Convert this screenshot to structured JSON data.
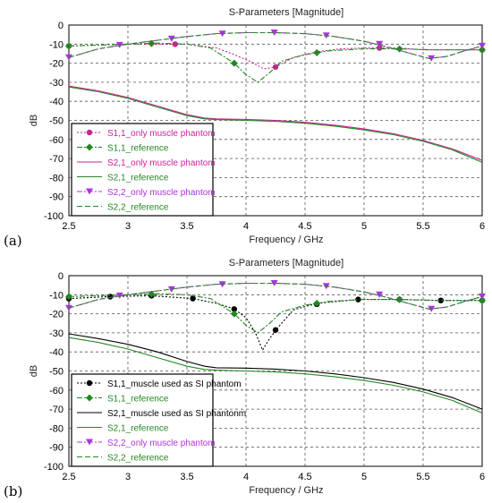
{
  "panels": [
    {
      "label": "(a)"
    },
    {
      "label": "(b)"
    }
  ],
  "chart_data": [
    {
      "type": "line",
      "title": "S-Parameters [Magnitude]",
      "xlabel": "Frequency / GHz",
      "ylabel": "dB",
      "xlim": [
        2.5,
        6
      ],
      "ylim": [
        -100,
        0
      ],
      "xticks": [
        "2.5",
        "3",
        "3.5",
        "4",
        "4.5",
        "5",
        "5.5",
        "6"
      ],
      "yticks": [
        "0",
        "-10",
        "-20",
        "-30",
        "-40",
        "-50",
        "-60",
        "-70",
        "-80",
        "-90",
        "-100"
      ],
      "grid": true,
      "legend_position": "bottom-left",
      "series": [
        {
          "name": "S1,1_only muscle phantom",
          "color": "#cc2299",
          "dash": "2,2",
          "marker": "circle",
          "x": [
            2.5,
            2.75,
            3.0,
            3.25,
            3.5,
            3.75,
            3.9,
            4.05,
            4.15,
            4.25,
            4.4,
            4.6,
            4.8,
            5.0,
            5.13,
            5.3,
            5.5,
            5.75,
            6.0
          ],
          "y": [
            -11,
            -10.5,
            -10,
            -10,
            -10,
            -12,
            -15.5,
            -19.5,
            -23,
            -22,
            -17,
            -14,
            -12.5,
            -12,
            -12,
            -12,
            -13,
            -13,
            -13
          ],
          "markers_x": [
            2.5,
            3.4,
            4.25,
            5.13,
            6.0
          ],
          "markers_y": [
            -11,
            -10,
            -22,
            -12,
            -13
          ]
        },
        {
          "name": "S1,1_reference",
          "color": "#228822",
          "dash": "6,2,2,2",
          "marker": "diamond",
          "x": [
            2.5,
            2.75,
            3.0,
            3.25,
            3.5,
            3.7,
            3.9,
            4.0,
            4.1,
            4.2,
            4.3,
            4.5,
            4.7,
            5.0,
            5.3,
            5.6,
            6.0
          ],
          "y": [
            -11,
            -10.5,
            -10,
            -9.5,
            -10,
            -12,
            -20,
            -26,
            -30,
            -25,
            -19,
            -15.5,
            -13.5,
            -12.5,
            -12.5,
            -13,
            -13
          ],
          "markers_x": [
            2.5,
            3.2,
            3.9,
            4.6,
            5.3,
            6.0
          ],
          "markers_y": [
            -11,
            -9.7,
            -20,
            -14.5,
            -12.5,
            -13
          ]
        },
        {
          "name": "S2,1_only muscle phantom",
          "color": "#cc2299",
          "dash": "",
          "marker": "none",
          "x": [
            2.5,
            2.75,
            3.0,
            3.25,
            3.5,
            3.65,
            3.75,
            4.0,
            4.25,
            4.5,
            4.75,
            5.0,
            5.25,
            5.5,
            5.75,
            6.0
          ],
          "y": [
            -32,
            -34.5,
            -38,
            -42.5,
            -47,
            -48.8,
            -49.2,
            -49.5,
            -50,
            -51,
            -52.5,
            -54.5,
            -57,
            -60.5,
            -65,
            -71
          ]
        },
        {
          "name": "S2,1_reference",
          "color": "#228822",
          "dash": "",
          "marker": "none",
          "x": [
            2.5,
            2.75,
            3.0,
            3.25,
            3.5,
            3.65,
            3.75,
            4.0,
            4.25,
            4.5,
            4.75,
            5.0,
            5.25,
            5.5,
            5.75,
            6.0
          ],
          "y": [
            -32.5,
            -35,
            -38.5,
            -43,
            -47.5,
            -49.2,
            -49.6,
            -50,
            -50.5,
            -51.5,
            -53,
            -55,
            -57.5,
            -61,
            -65.5,
            -72
          ]
        },
        {
          "name": "S2,2_only muscle phantom",
          "color": "#aa33dd",
          "dash": "6,2,2,2",
          "marker": "triangle",
          "x": [
            2.5,
            2.75,
            3.0,
            3.25,
            3.5,
            3.75,
            4.0,
            4.25,
            4.5,
            4.75,
            5.0,
            5.2,
            5.4,
            5.55,
            5.7,
            5.85,
            6.0
          ],
          "y": [
            -17,
            -12.5,
            -10,
            -8,
            -6,
            -4.5,
            -4,
            -4,
            -4.5,
            -6,
            -8.5,
            -11.5,
            -15,
            -17.5,
            -16.5,
            -13.5,
            -11
          ],
          "markers_x": [
            2.5,
            2.93,
            3.37,
            3.8,
            4.24,
            4.68,
            5.13,
            5.57,
            6.0
          ],
          "markers_y": [
            -17,
            -10.5,
            -7.2,
            -4.6,
            -4,
            -5.5,
            -10,
            -17.5,
            -11
          ]
        },
        {
          "name": "S2,2_reference",
          "color": "#228822",
          "dash": "6,3",
          "marker": "none",
          "x": [
            2.5,
            2.75,
            3.0,
            3.25,
            3.5,
            3.75,
            4.0,
            4.25,
            4.5,
            4.75,
            5.0,
            5.2,
            5.4,
            5.55,
            5.7,
            5.85,
            6.0
          ],
          "y": [
            -17,
            -12.5,
            -10,
            -8,
            -6,
            -4.5,
            -4,
            -4,
            -4.5,
            -6,
            -8.5,
            -11.5,
            -15,
            -17.5,
            -16.5,
            -13.5,
            -11
          ]
        }
      ]
    },
    {
      "type": "line",
      "title": "S-Parameters [Magnitude]",
      "xlabel": "Frequency / GHz",
      "ylabel": "dB",
      "xlim": [
        2.5,
        6
      ],
      "ylim": [
        -100,
        0
      ],
      "xticks": [
        "2.5",
        "3",
        "3.5",
        "4",
        "4.5",
        "5",
        "5.5",
        "6"
      ],
      "yticks": [
        "0",
        "-10",
        "-20",
        "-30",
        "-40",
        "-50",
        "-60",
        "-70",
        "-80",
        "-90",
        "-100"
      ],
      "grid": true,
      "legend_position": "bottom-left",
      "series": [
        {
          "name": "S1,1_muscle used as SI phantom",
          "color": "#000000",
          "dash": "2,2",
          "marker": "circle",
          "x": [
            2.5,
            2.85,
            3.2,
            3.55,
            3.75,
            3.9,
            4.0,
            4.08,
            4.14,
            4.2,
            4.26,
            4.4,
            4.6,
            4.95,
            5.3,
            5.65,
            6.0
          ],
          "y": [
            -12,
            -11,
            -10.5,
            -12,
            -14.5,
            -17.5,
            -22,
            -30,
            -39,
            -33,
            -28,
            -18,
            -14.5,
            -12.5,
            -12.5,
            -13,
            -13
          ],
          "markers_x": [
            2.5,
            2.85,
            3.2,
            3.55,
            3.9,
            4.25,
            4.6,
            4.95,
            5.3,
            5.65,
            6.0
          ],
          "markers_y": [
            -12,
            -11,
            -10.5,
            -12,
            -17.5,
            -28.5,
            -15,
            -12.5,
            -12.5,
            -13,
            -13
          ]
        },
        {
          "name": "S1,1_reference",
          "color": "#228822",
          "dash": "6,2,2,2",
          "marker": "diamond",
          "x": [
            2.5,
            2.75,
            3.0,
            3.25,
            3.5,
            3.7,
            3.9,
            4.0,
            4.1,
            4.2,
            4.3,
            4.5,
            4.7,
            5.0,
            5.3,
            5.6,
            6.0
          ],
          "y": [
            -11,
            -10.5,
            -10,
            -9.5,
            -10,
            -12,
            -20,
            -26,
            -30,
            -25,
            -19,
            -15.5,
            -13.5,
            -12.5,
            -12.5,
            -13,
            -13
          ],
          "markers_x": [
            2.5,
            3.2,
            3.9,
            4.6,
            5.3,
            6.0
          ],
          "markers_y": [
            -11,
            -9.7,
            -20,
            -14.5,
            -12.5,
            -13
          ]
        },
        {
          "name": "S2,1_muscle used as SI phantonm",
          "color": "#000000",
          "dash": "",
          "marker": "none",
          "x": [
            2.5,
            2.75,
            3.0,
            3.25,
            3.5,
            3.65,
            3.75,
            4.0,
            4.25,
            4.5,
            4.75,
            5.0,
            5.25,
            5.5,
            5.75,
            6.0
          ],
          "y": [
            -30.5,
            -33,
            -36,
            -40,
            -45,
            -47.5,
            -48.3,
            -48.5,
            -49,
            -50,
            -51.5,
            -53.5,
            -56,
            -59.5,
            -64,
            -70
          ]
        },
        {
          "name": "S2,1_reference",
          "color": "#228822",
          "dash": "",
          "marker": "none",
          "x": [
            2.5,
            2.75,
            3.0,
            3.25,
            3.5,
            3.65,
            3.75,
            4.0,
            4.25,
            4.5,
            4.75,
            5.0,
            5.25,
            5.5,
            5.75,
            6.0
          ],
          "y": [
            -32.5,
            -35,
            -38.5,
            -43,
            -47.5,
            -49.2,
            -49.6,
            -50,
            -50.5,
            -51.5,
            -53,
            -55,
            -57.5,
            -61,
            -65.5,
            -72
          ]
        },
        {
          "name": "S2,2_only muscle phantom",
          "color": "#aa33dd",
          "dash": "6,2,2,2",
          "marker": "triangle",
          "x": [
            2.5,
            2.75,
            3.0,
            3.25,
            3.5,
            3.75,
            4.0,
            4.25,
            4.5,
            4.75,
            5.0,
            5.2,
            5.4,
            5.55,
            5.7,
            5.85,
            6.0
          ],
          "y": [
            -17,
            -12.5,
            -10,
            -8,
            -6,
            -4.5,
            -4,
            -4,
            -4.5,
            -6,
            -8.5,
            -11.5,
            -15,
            -17.5,
            -16.5,
            -13.5,
            -11
          ],
          "markers_x": [
            2.5,
            2.93,
            3.37,
            3.8,
            4.24,
            4.68,
            5.13,
            5.57,
            6.0
          ],
          "markers_y": [
            -17,
            -10.5,
            -7.2,
            -4.6,
            -4,
            -5.5,
            -10,
            -17.5,
            -11
          ]
        },
        {
          "name": "S2,2_reference",
          "color": "#228822",
          "dash": "6,3",
          "marker": "none",
          "x": [
            2.5,
            2.75,
            3.0,
            3.25,
            3.5,
            3.75,
            4.0,
            4.25,
            4.5,
            4.75,
            5.0,
            5.2,
            5.4,
            5.55,
            5.7,
            5.85,
            6.0
          ],
          "y": [
            -17,
            -12.5,
            -10,
            -8,
            -6,
            -4.5,
            -4,
            -4,
            -4.5,
            -6,
            -8.5,
            -11.5,
            -15,
            -17.5,
            -16.5,
            -13.5,
            -11
          ]
        }
      ]
    }
  ]
}
